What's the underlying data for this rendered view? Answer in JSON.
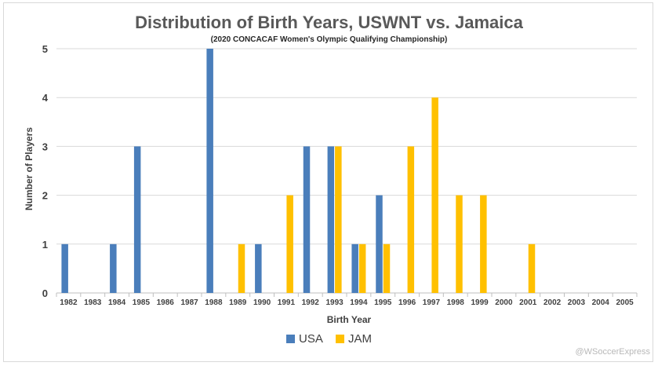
{
  "chart_data": {
    "type": "bar",
    "title": "Distribution of Birth Years, USWNT vs. Jamaica",
    "subtitle": "(2020 CONCACAF Women's Olympic Qualifying Championship)",
    "xlabel": "Birth Year",
    "ylabel": "Number of Players",
    "ylim": [
      0,
      5
    ],
    "yticks": [
      "0",
      "1",
      "2",
      "3",
      "4",
      "5"
    ],
    "categories": [
      "1982",
      "1983",
      "1984",
      "1985",
      "1986",
      "1987",
      "1988",
      "1989",
      "1990",
      "1991",
      "1992",
      "1993",
      "1994",
      "1995",
      "1996",
      "1997",
      "1998",
      "1999",
      "2000",
      "2001",
      "2002",
      "2003",
      "2004",
      "2005"
    ],
    "series": [
      {
        "name": "USA",
        "color": "#4a7ebb",
        "values": [
          1,
          0,
          1,
          3,
          0,
          0,
          5,
          0,
          1,
          0,
          3,
          3,
          1,
          2,
          0,
          0,
          0,
          0,
          0,
          0,
          0,
          0,
          0,
          0
        ]
      },
      {
        "name": "JAM",
        "color": "#ffc000",
        "values": [
          0,
          0,
          0,
          0,
          0,
          0,
          0,
          1,
          0,
          2,
          0,
          3,
          1,
          1,
          3,
          4,
          2,
          2,
          0,
          1,
          0,
          0,
          0,
          0
        ]
      }
    ],
    "grid": "horizontal",
    "legend_position": "bottom"
  },
  "watermark": "@WSoccerExpress"
}
